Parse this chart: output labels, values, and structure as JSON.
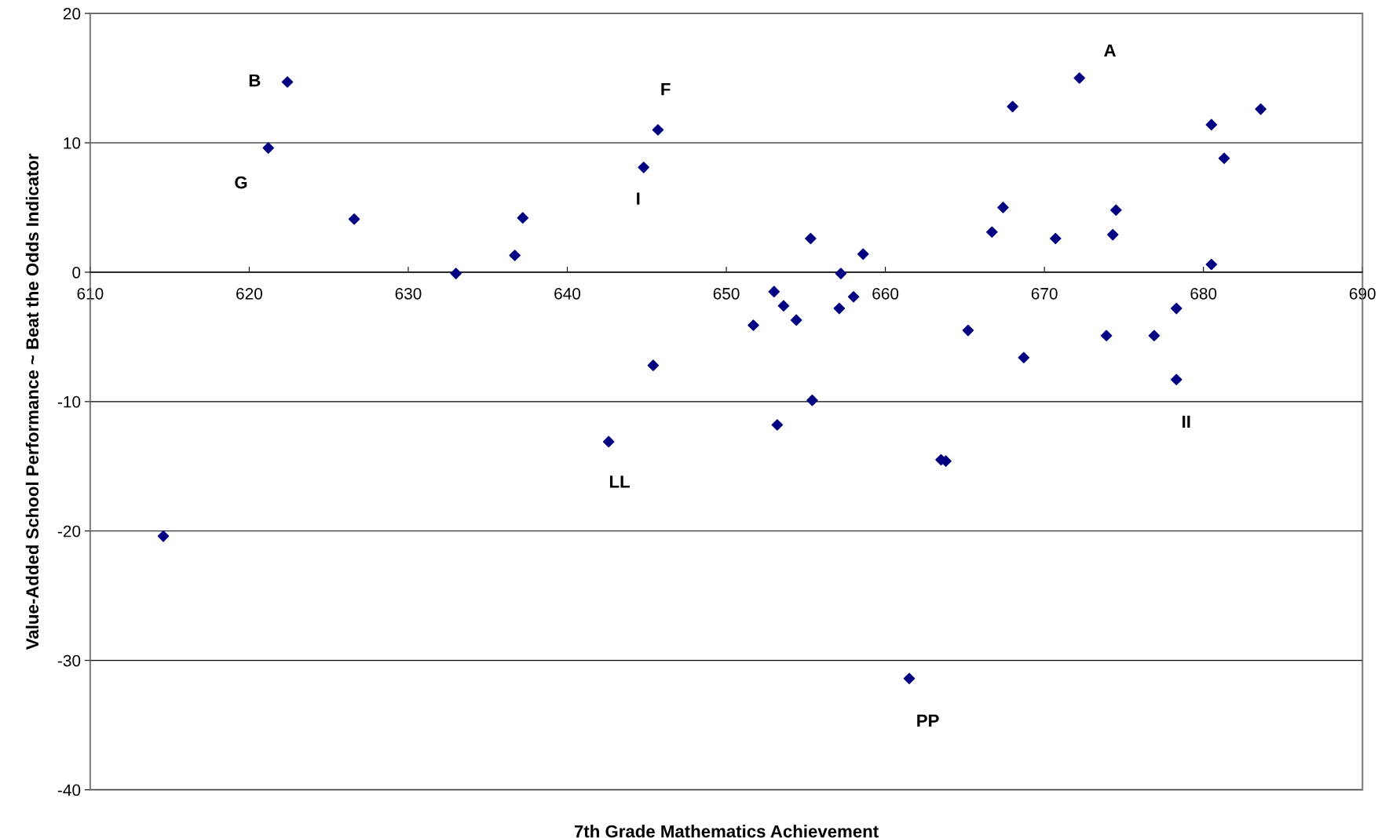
{
  "chart_data": {
    "type": "scatter",
    "xlabel": "7th Grade Mathematics Achievement",
    "ylabel": "Value-Added School Performance ~ Beat the Odds Indicator",
    "x": [
      614.6,
      622.4,
      621.2,
      626.6,
      633.0,
      636.7,
      637.2,
      642.6,
      644.8,
      645.7,
      645.4,
      651.7,
      653.0,
      653.6,
      653.2,
      654.4,
      655.3,
      655.4,
      657.1,
      657.2,
      658.0,
      658.6,
      661.5,
      663.5,
      663.8,
      665.2,
      666.7,
      667.4,
      668.0,
      668.7,
      670.7,
      672.2,
      673.9,
      674.3,
      674.5,
      676.9,
      678.3,
      678.3,
      680.5,
      680.5,
      681.3,
      683.6
    ],
    "series": [
      {
        "color": "#000080",
        "values": [
          -20.4,
          14.7,
          9.6,
          4.1,
          -0.1,
          1.3,
          4.2,
          -13.1,
          8.1,
          11.0,
          -7.2,
          -4.1,
          -1.5,
          -2.6,
          -11.8,
          -3.7,
          2.6,
          -9.9,
          -2.8,
          -0.1,
          -1.9,
          1.4,
          -31.4,
          -14.5,
          -14.6,
          -4.5,
          3.1,
          5.0,
          12.8,
          -6.6,
          2.6,
          15.0,
          -4.9,
          2.9,
          4.8,
          -4.9,
          -2.8,
          -8.3,
          11.4,
          0.6,
          8.8,
          12.6
        ]
      }
    ],
    "marker": "diamond",
    "grid": "y",
    "xlim": [
      610,
      690
    ],
    "xticks": [
      610,
      620,
      630,
      640,
      650,
      660,
      670,
      680,
      690
    ],
    "ylim": [
      -40,
      20
    ],
    "yticks": [
      -40,
      -30,
      -20,
      -10,
      0,
      10,
      20
    ],
    "annotations": [
      {
        "text": "A",
        "x": 672.2,
        "y": 15.0
      },
      {
        "text": "B",
        "x": 622.4,
        "y": 14.7
      },
      {
        "text": "F",
        "x": 645.7,
        "y": 11.0
      },
      {
        "text": "G",
        "x": 621.2,
        "y": 9.6
      },
      {
        "text": "I",
        "x": 644.8,
        "y": 8.1
      },
      {
        "text": "LL",
        "x": 642.6,
        "y": -13.1
      },
      {
        "text": "PP",
        "x": 661.5,
        "y": -31.4
      },
      {
        "text": "II",
        "x": 678.3,
        "y": -8.3
      }
    ]
  }
}
